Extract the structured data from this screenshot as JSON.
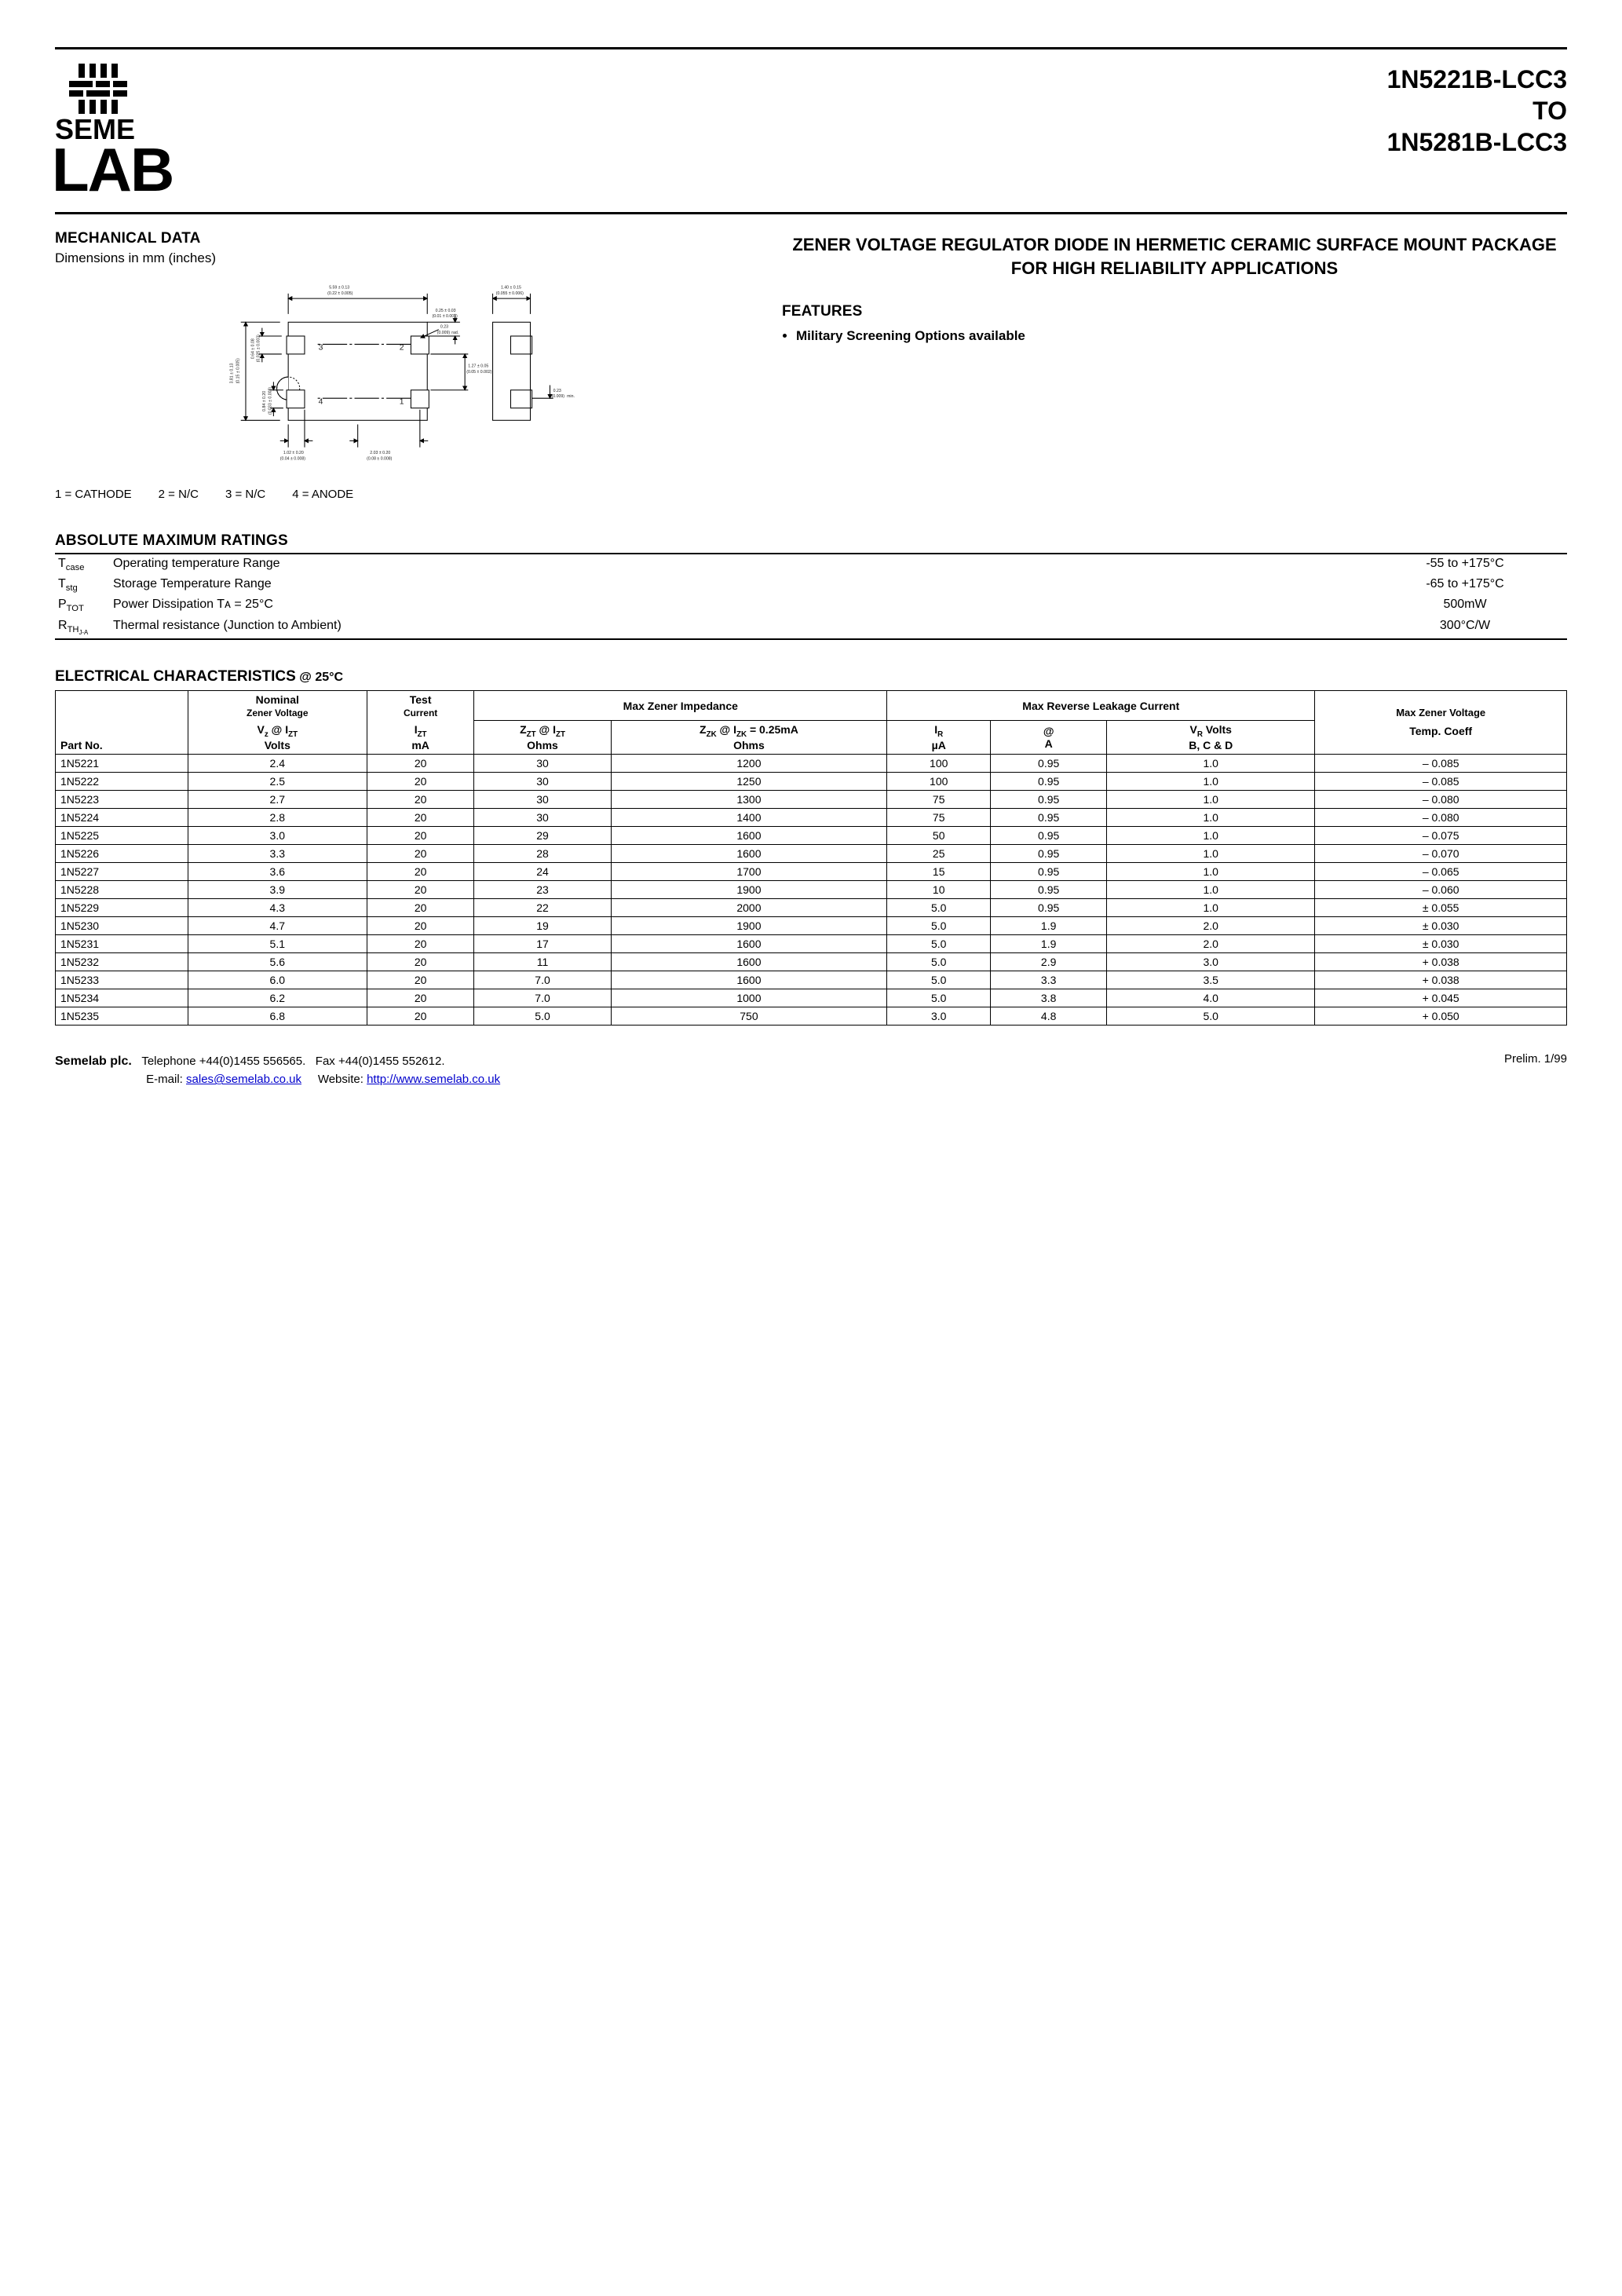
{
  "header": {
    "part_from": "1N5221B-LCC3",
    "part_mid": "TO",
    "part_to": "1N5281B-LCC3"
  },
  "logo": {
    "line1": "SEME",
    "line2": "LAB"
  },
  "mechanical": {
    "title": "MECHANICAL DATA",
    "subtitle": "Dimensions in mm (inches)",
    "dims": {
      "d1": "5.59 ± 0.13",
      "d1i": "(0.22 ± 0.005)",
      "d2": "1.40 ± 0.15",
      "d2i": "(0.055 ± 0.006)",
      "d3": "0.25 ± 0.03",
      "d3i": "(0.01 ± 0.001)",
      "d4": "0.23",
      "d4i": "(0.009)",
      "d4r": "rad.",
      "d5": "1.27 ± 0.05",
      "d5i": "(0.05 ± 0.002)",
      "d6": "0.23",
      "d6i": "(0.009)",
      "d6m": "min.",
      "d7": "1.02 ± 0.20",
      "d7i": "(0.04 ± 0.008)",
      "d8": "2.03 ± 0.20",
      "d8i": "(0.08 ± 0.008)",
      "dh": "3.81 ± 0.13",
      "dhi": "(0.15 ± 0.005)",
      "dp": "0.64 ± 0.08",
      "dpi": "(0.025 ± 0.003)",
      "dq": "0.84 ± 0.20",
      "dqi": "(0.033 ± 0.008)"
    },
    "pins": {
      "p1": "1 = CATHODE",
      "p2": "2 = N/C",
      "p3": "3 = N/C",
      "p4": "4 = ANODE"
    }
  },
  "description": "ZENER VOLTAGE REGULATOR DIODE IN HERMETIC CERAMIC SURFACE MOUNT PACKAGE FOR HIGH RELIABILITY APPLICATIONS",
  "features": {
    "title": "FEATURES",
    "items": [
      "Military Screening Options available"
    ]
  },
  "amr": {
    "title": "ABSOLUTE MAXIMUM RATINGS",
    "rows": [
      {
        "sym": "T",
        "sub": "case",
        "desc": "Operating temperature Range",
        "val": "-55 to +175°C"
      },
      {
        "sym": "T",
        "sub": "stg",
        "desc": "Storage Temperature Range",
        "val": "-65 to +175°C"
      },
      {
        "sym": "P",
        "sub": "TOT",
        "desc": "Power Dissipation Tᴀ = 25°C",
        "val": "500mW"
      },
      {
        "sym": "R",
        "sub": "TH<sub>J-A</sub>",
        "desc": "Thermal resistance (Junction to Ambient)",
        "val": "300°C/W"
      }
    ]
  },
  "ec": {
    "title": "ELECTRICAL CHARACTERISTICS",
    "at": "@ 25°C",
    "headers": {
      "partno": "Part No.",
      "nominal1": "Nominal",
      "nominal2": "Zener Voltage",
      "test1": "Test",
      "test2": "Current",
      "mzi": "Max Zener Impedance",
      "mrlc": "Max Reverse Leakage Current",
      "mzv1": "Max Zener Voltage",
      "mzv2": "Temp. Coeff",
      "vz": "V<sub>z</sub> @ I<sub>ZT</sub>",
      "vz_u": "Volts",
      "izt": "I<sub>ZT</sub>",
      "izt_u": "mA",
      "zzt": "Z<sub>ZT</sub> @ I<sub>ZT</sub>",
      "zzt_u": "Ohms",
      "zzk": "Z<sub>ZK</sub> @ I<sub>ZK</sub>  = 0.25mA",
      "zzk_u": "Ohms",
      "ir": "I<sub>R</sub>",
      "ir_u": "µA",
      "at_col": "@",
      "at_u": "A",
      "vr": "V<sub>R</sub>  Volts",
      "vr_u": "B, C & D"
    },
    "rows": [
      [
        "1N5221",
        "2.4",
        "20",
        "30",
        "1200",
        "100",
        "0.95",
        "1.0",
        "– 0.085"
      ],
      [
        "1N5222",
        "2.5",
        "20",
        "30",
        "1250",
        "100",
        "0.95",
        "1.0",
        "– 0.085"
      ],
      [
        "1N5223",
        "2.7",
        "20",
        "30",
        "1300",
        "75",
        "0.95",
        "1.0",
        "– 0.080"
      ],
      [
        "1N5224",
        "2.8",
        "20",
        "30",
        "1400",
        "75",
        "0.95",
        "1.0",
        "– 0.080"
      ],
      [
        "1N5225",
        "3.0",
        "20",
        "29",
        "1600",
        "50",
        "0.95",
        "1.0",
        "– 0.075"
      ],
      [
        "1N5226",
        "3.3",
        "20",
        "28",
        "1600",
        "25",
        "0.95",
        "1.0",
        "– 0.070"
      ],
      [
        "1N5227",
        "3.6",
        "20",
        "24",
        "1700",
        "15",
        "0.95",
        "1.0",
        "– 0.065"
      ],
      [
        "1N5228",
        "3.9",
        "20",
        "23",
        "1900",
        "10",
        "0.95",
        "1.0",
        "– 0.060"
      ],
      [
        "1N5229",
        "4.3",
        "20",
        "22",
        "2000",
        "5.0",
        "0.95",
        "1.0",
        "± 0.055"
      ],
      [
        "1N5230",
        "4.7",
        "20",
        "19",
        "1900",
        "5.0",
        "1.9",
        "2.0",
        "± 0.030"
      ],
      [
        "1N5231",
        "5.1",
        "20",
        "17",
        "1600",
        "5.0",
        "1.9",
        "2.0",
        "± 0.030"
      ],
      [
        "1N5232",
        "5.6",
        "20",
        "11",
        "1600",
        "5.0",
        "2.9",
        "3.0",
        "+ 0.038"
      ],
      [
        "1N5233",
        "6.0",
        "20",
        "7.0",
        "1600",
        "5.0",
        "3.3",
        "3.5",
        "+ 0.038"
      ],
      [
        "1N5234",
        "6.2",
        "20",
        "7.0",
        "1000",
        "5.0",
        "3.8",
        "4.0",
        "+ 0.045"
      ],
      [
        "1N5235",
        "6.8",
        "20",
        "5.0",
        "750",
        "3.0",
        "4.8",
        "5.0",
        "+ 0.050"
      ]
    ]
  },
  "footer": {
    "company": "Semelab plc.",
    "tel": "Telephone +44(0)1455 556565.",
    "fax": "Fax +44(0)1455 552612.",
    "email_label": "E-mail: ",
    "email": "sales@semelab.co.uk",
    "web_label": "Website: ",
    "web": "http://www.semelab.co.uk",
    "rev": "Prelim. 1/99"
  },
  "colors": {
    "text": "#000000",
    "link": "#0000cc",
    "bg": "#ffffff",
    "stroke": "#000000"
  }
}
